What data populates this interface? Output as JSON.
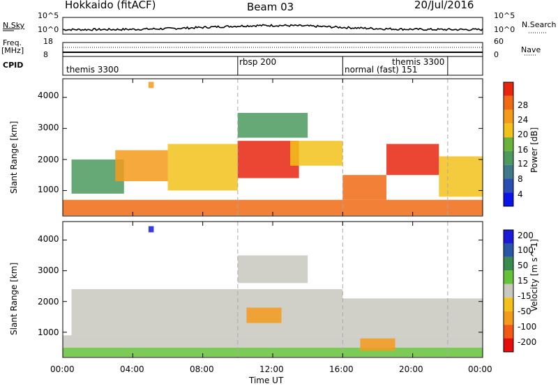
{
  "header": {
    "radar": "Hokkaido (fitACF)",
    "beam": "Beam 03",
    "date": "20/Jul/2016"
  },
  "noise_panel": {
    "left_label": "N.Sky",
    "right_label": "N.Search",
    "left_ticks": [
      "10^5",
      "10^0"
    ],
    "right_ticks": [
      "10^5",
      "10^0"
    ]
  },
  "freq_panel": {
    "label_line1": "Freq.",
    "label_line2": "[MHz]",
    "left_ticks": [
      "18",
      "8"
    ],
    "right_ticks": [
      "60",
      "0"
    ],
    "right_label": "Nave"
  },
  "cpid_panel": {
    "label": "CPID",
    "modes": [
      {
        "name": "themis 3300",
        "start_hour": 0.0
      },
      {
        "name": "rbsp 200",
        "start_hour": 10.0
      },
      {
        "name": "normal (fast) 151",
        "start_hour": 16.0
      },
      {
        "name": "themis 3300",
        "start_hour": 22.0
      }
    ]
  },
  "colors": {
    "power": [
      "#0a14e6",
      "#2a4fb4",
      "#3f7a8c",
      "#4c9a5e",
      "#69b33a",
      "#f2c21a",
      "#f59b1c",
      "#f06a14",
      "#e8260f"
    ],
    "velocity": [
      "#e60d0d",
      "#f25a14",
      "#f59b1c",
      "#f2c21a",
      "#c8c8c0",
      "#66c23a",
      "#3a8c4c",
      "#2a56a8",
      "#1a1ad8"
    ]
  },
  "chart_data": [
    {
      "type": "heatmap",
      "name": "power",
      "ylabel": "Slant Range [km]",
      "xlim": [
        0,
        24
      ],
      "ylim": [
        180,
        4600
      ],
      "y_ticks": [
        1000,
        2000,
        3000,
        4000
      ],
      "colorbar": {
        "label": "Power [dB]",
        "ticks": [
          "4",
          "8",
          "12",
          "16",
          "20",
          "24",
          "28"
        ],
        "range": [
          0,
          32
        ]
      },
      "regions": [
        {
          "t0": 0.0,
          "t1": 24.0,
          "r0": 200,
          "r1": 700,
          "level": 7
        },
        {
          "t0": 0.5,
          "t1": 3.5,
          "r0": 900,
          "r1": 2000,
          "level": 3
        },
        {
          "t0": 3.0,
          "t1": 6.0,
          "r0": 1300,
          "r1": 2300,
          "level": 6
        },
        {
          "t0": 6.0,
          "t1": 10.0,
          "r0": 1000,
          "r1": 2500,
          "level": 5
        },
        {
          "t0": 10.0,
          "t1": 13.5,
          "r0": 1400,
          "r1": 2600,
          "level": 8
        },
        {
          "t0": 10.0,
          "t1": 14.0,
          "r0": 2700,
          "r1": 3500,
          "level": 3
        },
        {
          "t0": 13.0,
          "t1": 16.0,
          "r0": 1800,
          "r1": 2600,
          "level": 5
        },
        {
          "t0": 16.0,
          "t1": 18.5,
          "r0": 700,
          "r1": 1500,
          "level": 7
        },
        {
          "t0": 18.5,
          "t1": 21.5,
          "r0": 1500,
          "r1": 2500,
          "level": 8
        },
        {
          "t0": 21.5,
          "t1": 24.0,
          "r0": 800,
          "r1": 2100,
          "level": 5
        },
        {
          "t0": 4.9,
          "t1": 5.2,
          "r0": 4300,
          "r1": 4500,
          "level": 6
        }
      ]
    },
    {
      "type": "heatmap",
      "name": "velocity",
      "ylabel": "Slant Range [km]",
      "xlabel": "Time UT",
      "xlim": [
        0,
        24
      ],
      "ylim": [
        180,
        4600
      ],
      "y_ticks": [
        1000,
        2000,
        3000,
        4000
      ],
      "x_ticks": [
        "00:00",
        "04:00",
        "08:00",
        "12:00",
        "16:00",
        "20:00",
        "00:00"
      ],
      "colorbar": {
        "label": "Velocity [m s^-1]",
        "ticks": [
          "200",
          "100",
          "50",
          "15",
          "-15",
          "-50",
          "-100",
          "-200"
        ],
        "range": [
          -250,
          250
        ]
      },
      "regions": [
        {
          "t0": 0.0,
          "t1": 24.0,
          "r0": 200,
          "r1": 500,
          "level": 5
        },
        {
          "t0": 0.0,
          "t1": 24.0,
          "r0": 500,
          "r1": 900,
          "level": 4
        },
        {
          "t0": 0.5,
          "t1": 16.0,
          "r0": 900,
          "r1": 2400,
          "level": 4
        },
        {
          "t0": 10.0,
          "t1": 14.0,
          "r0": 2600,
          "r1": 3500,
          "level": 4
        },
        {
          "t0": 16.0,
          "t1": 24.0,
          "r0": 900,
          "r1": 2100,
          "level": 4
        },
        {
          "t0": 17.0,
          "t1": 19.0,
          "r0": 400,
          "r1": 800,
          "level": 2
        },
        {
          "t0": 10.5,
          "t1": 12.5,
          "r0": 1300,
          "r1": 1800,
          "level": 2
        },
        {
          "t0": 4.9,
          "t1": 5.2,
          "r0": 4250,
          "r1": 4450,
          "level": 8
        }
      ]
    }
  ]
}
